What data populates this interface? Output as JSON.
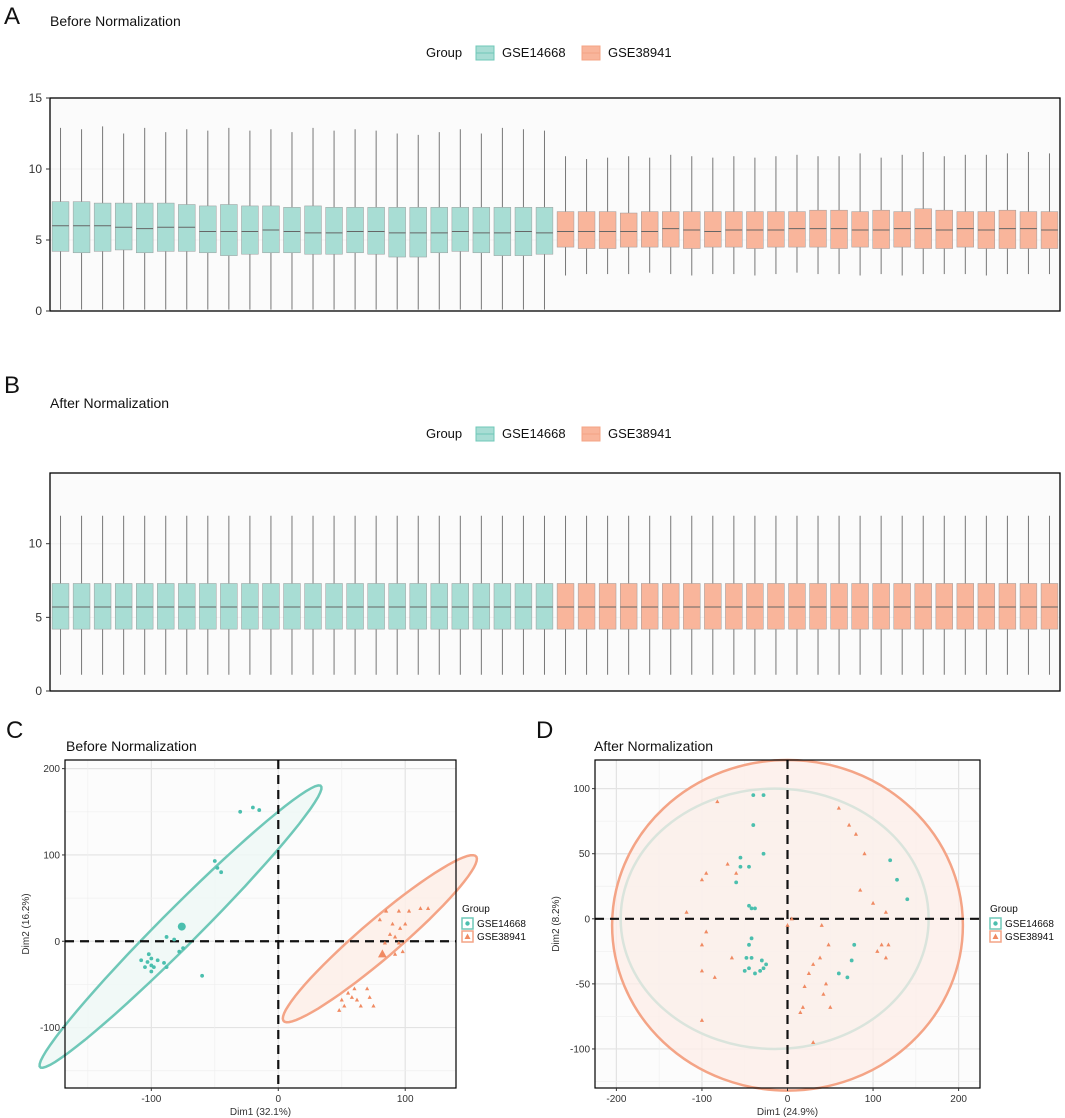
{
  "colors": {
    "gse14668_fill": "#a8ddd4",
    "gse14668_line": "#6fc8b8",
    "gse14668_point": "#4bbfae",
    "gse38941_fill": "#f9b59b",
    "gse38941_line": "#f4a486",
    "gse38941_point": "#f08a62",
    "ellipse1_fill": "#eef8f6",
    "ellipse2_fill": "#fdeee8"
  },
  "legend": {
    "title": "Group",
    "entries": [
      "GSE14668",
      "GSE38941"
    ]
  },
  "panels": {
    "a": {
      "letter": "A",
      "title": "Before Normalization"
    },
    "b": {
      "letter": "B",
      "title": "After Normalization"
    },
    "c": {
      "letter": "C",
      "title": "Before Normalization"
    },
    "d": {
      "letter": "D",
      "title": "After Normalization"
    }
  },
  "chart_data": [
    {
      "id": "A",
      "type": "boxplot",
      "title": "Before Normalization",
      "ylim": [
        0,
        15
      ],
      "yticks": [
        0,
        5,
        10,
        15
      ],
      "groups": [
        {
          "name": "GSE14668",
          "color_key": "gse14668",
          "boxes": [
            [
              0.1,
              4.2,
              6.0,
              7.7,
              12.9
            ],
            [
              0.1,
              4.1,
              6.0,
              7.7,
              12.8
            ],
            [
              0.1,
              4.2,
              6.0,
              7.6,
              13.0
            ],
            [
              0.1,
              4.3,
              5.9,
              7.6,
              12.5
            ],
            [
              0.1,
              4.1,
              5.8,
              7.6,
              12.9
            ],
            [
              0.1,
              4.2,
              5.9,
              7.6,
              12.6
            ],
            [
              0.1,
              4.2,
              5.9,
              7.5,
              12.8
            ],
            [
              0.1,
              4.1,
              5.6,
              7.4,
              12.7
            ],
            [
              0.1,
              3.9,
              5.6,
              7.5,
              12.9
            ],
            [
              0.1,
              4.0,
              5.6,
              7.4,
              12.7
            ],
            [
              0.1,
              4.1,
              5.7,
              7.4,
              12.8
            ],
            [
              0.1,
              4.1,
              5.6,
              7.3,
              12.6
            ],
            [
              0.1,
              4.0,
              5.5,
              7.4,
              12.9
            ],
            [
              0.1,
              4.0,
              5.5,
              7.3,
              12.7
            ],
            [
              0.1,
              4.1,
              5.6,
              7.3,
              12.8
            ],
            [
              0.1,
              4.0,
              5.6,
              7.3,
              12.7
            ],
            [
              0.1,
              3.8,
              5.5,
              7.3,
              12.5
            ],
            [
              0.1,
              3.8,
              5.5,
              7.3,
              12.4
            ],
            [
              0.1,
              4.1,
              5.5,
              7.3,
              12.6
            ],
            [
              0.1,
              4.2,
              5.6,
              7.3,
              12.8
            ],
            [
              0.1,
              4.1,
              5.5,
              7.3,
              12.5
            ],
            [
              0.1,
              3.9,
              5.5,
              7.3,
              12.9
            ],
            [
              0.1,
              3.9,
              5.6,
              7.3,
              12.8
            ],
            [
              0.1,
              4.0,
              5.5,
              7.3,
              12.7
            ]
          ]
        },
        {
          "name": "GSE38941",
          "color_key": "gse38941",
          "boxes": [
            [
              2.5,
              4.5,
              5.6,
              7.0,
              10.9
            ],
            [
              2.6,
              4.4,
              5.6,
              7.0,
              10.7
            ],
            [
              2.6,
              4.4,
              5.6,
              7.0,
              10.8
            ],
            [
              2.6,
              4.5,
              5.6,
              6.9,
              10.9
            ],
            [
              2.7,
              4.5,
              5.6,
              7.0,
              10.8
            ],
            [
              2.6,
              4.5,
              5.8,
              7.0,
              11.0
            ],
            [
              2.5,
              4.4,
              5.7,
              7.0,
              10.9
            ],
            [
              2.6,
              4.5,
              5.6,
              7.0,
              10.8
            ],
            [
              2.6,
              4.5,
              5.7,
              7.0,
              10.9
            ],
            [
              2.5,
              4.4,
              5.7,
              7.0,
              10.8
            ],
            [
              2.6,
              4.5,
              5.7,
              7.0,
              10.9
            ],
            [
              2.7,
              4.5,
              5.8,
              7.0,
              11.0
            ],
            [
              2.6,
              4.5,
              5.8,
              7.1,
              10.9
            ],
            [
              2.6,
              4.4,
              5.8,
              7.1,
              10.9
            ],
            [
              2.5,
              4.5,
              5.7,
              7.0,
              11.1
            ],
            [
              2.6,
              4.4,
              5.7,
              7.1,
              10.8
            ],
            [
              2.5,
              4.5,
              5.8,
              7.0,
              11.0
            ],
            [
              2.6,
              4.4,
              5.8,
              7.2,
              11.2
            ],
            [
              2.6,
              4.4,
              5.7,
              7.1,
              10.9
            ],
            [
              2.6,
              4.5,
              5.8,
              7.0,
              11.0
            ],
            [
              2.5,
              4.4,
              5.7,
              7.0,
              11.0
            ],
            [
              2.6,
              4.4,
              5.8,
              7.1,
              11.1
            ],
            [
              2.6,
              4.4,
              5.8,
              7.0,
              11.2
            ],
            [
              2.6,
              4.4,
              5.7,
              7.0,
              11.1
            ]
          ]
        }
      ]
    },
    {
      "id": "B",
      "type": "boxplot",
      "title": "After Normalization",
      "ylim": [
        0,
        14.8
      ],
      "yticks": [
        0,
        5,
        10
      ],
      "groups": [
        {
          "name": "GSE14668",
          "color_key": "gse14668",
          "count": 24,
          "box": [
            1.1,
            4.2,
            5.7,
            7.3,
            11.9
          ]
        },
        {
          "name": "GSE38941",
          "color_key": "gse38941",
          "count": 24,
          "box": [
            1.1,
            4.2,
            5.7,
            7.3,
            11.9
          ]
        }
      ]
    },
    {
      "id": "C",
      "type": "scatter",
      "title": "Before Normalization",
      "xlabel": "Dim1 (32.1%)",
      "ylabel": "Dim2 (16.2%)",
      "xlim": [
        -168,
        140
      ],
      "ylim": [
        -170,
        210
      ],
      "xticks": [
        -100,
        0,
        100
      ],
      "yticks": [
        -100,
        0,
        100,
        200
      ],
      "series": [
        {
          "name": "GSE14668",
          "marker": "circle",
          "ellipse": {
            "cx": -77,
            "cy": 17,
            "rx": 197,
            "ry": 17,
            "angle_deg": 56
          },
          "centroid": [
            -76,
            17
          ],
          "points": [
            [
              -30,
              150
            ],
            [
              -20,
              155
            ],
            [
              -15,
              152
            ],
            [
              -50,
              93
            ],
            [
              -48,
              85
            ],
            [
              -45,
              80
            ],
            [
              -82,
              2
            ],
            [
              -88,
              5
            ],
            [
              -78,
              -12
            ],
            [
              -100,
              -20
            ],
            [
              -103,
              -24
            ],
            [
              -105,
              -30
            ],
            [
              -98,
              -30
            ],
            [
              -108,
              -22
            ],
            [
              -95,
              -22
            ],
            [
              -90,
              -25
            ],
            [
              -100,
              -35
            ],
            [
              -102,
              -15
            ],
            [
              -88,
              -30
            ],
            [
              -75,
              -8
            ],
            [
              -60,
              -40
            ],
            [
              -100,
              -28
            ]
          ]
        },
        {
          "name": "GSE38941",
          "marker": "triangle",
          "ellipse": {
            "cx": 80,
            "cy": 3,
            "rx": 122,
            "ry": 18,
            "angle_deg": 52
          },
          "centroid": [
            82,
            -15
          ],
          "points": [
            [
              85,
              35
            ],
            [
              95,
              35
            ],
            [
              103,
              35
            ],
            [
              112,
              38
            ],
            [
              118,
              38
            ],
            [
              80,
              25
            ],
            [
              90,
              20
            ],
            [
              100,
              20
            ],
            [
              96,
              15
            ],
            [
              88,
              8
            ],
            [
              92,
              5
            ],
            [
              95,
              -2
            ],
            [
              92,
              -15
            ],
            [
              98,
              -12
            ],
            [
              84,
              -2
            ],
            [
              60,
              -55
            ],
            [
              55,
              -60
            ],
            [
              58,
              -65
            ],
            [
              62,
              -68
            ],
            [
              50,
              -68
            ],
            [
              52,
              -75
            ],
            [
              65,
              -75
            ],
            [
              48,
              -80
            ],
            [
              72,
              -65
            ],
            [
              70,
              -55
            ],
            [
              75,
              -75
            ]
          ]
        }
      ]
    },
    {
      "id": "D",
      "type": "scatter",
      "title": "After Normalization",
      "xlabel": "Dim1 (24.9%)",
      "ylabel": "Dim2 (8.2%)",
      "xlim": [
        -225,
        225
      ],
      "ylim": [
        -130,
        122
      ],
      "xticks": [
        -200,
        -100,
        0,
        100,
        200
      ],
      "yticks": [
        -100,
        -50,
        0,
        50,
        100
      ],
      "series": [
        {
          "name": "GSE14668",
          "marker": "circle",
          "ellipse": {
            "cx": -15,
            "cy": 0,
            "rx": 180,
            "ry": 100,
            "angle_deg": 0
          },
          "centroid": [
            0,
            0
          ],
          "points": [
            [
              -40,
              95
            ],
            [
              -28,
              95
            ],
            [
              -40,
              72
            ],
            [
              -55,
              47
            ],
            [
              -55,
              40
            ],
            [
              -28,
              50
            ],
            [
              -45,
              40
            ],
            [
              -60,
              28
            ],
            [
              -45,
              10
            ],
            [
              -38,
              8
            ],
            [
              -42,
              8
            ],
            [
              -42,
              -15
            ],
            [
              -45,
              -20
            ],
            [
              -48,
              -30
            ],
            [
              -42,
              -30
            ],
            [
              -45,
              -38
            ],
            [
              -38,
              -42
            ],
            [
              -30,
              -32
            ],
            [
              -32,
              -40
            ],
            [
              -28,
              -38
            ],
            [
              -25,
              -35
            ],
            [
              -50,
              -40
            ],
            [
              120,
              45
            ],
            [
              128,
              30
            ],
            [
              140,
              15
            ],
            [
              78,
              -20
            ],
            [
              75,
              -32
            ],
            [
              70,
              -45
            ],
            [
              60,
              -42
            ]
          ]
        },
        {
          "name": "GSE38941",
          "marker": "triangle",
          "ellipse": {
            "cx": 0,
            "cy": -5,
            "rx": 205,
            "ry": 127,
            "angle_deg": 0
          },
          "centroid": [
            0,
            0
          ],
          "points": [
            [
              -82,
              90
            ],
            [
              -95,
              35
            ],
            [
              -100,
              30
            ],
            [
              -118,
              5
            ],
            [
              -95,
              -10
            ],
            [
              -100,
              -20
            ],
            [
              -85,
              -45
            ],
            [
              -100,
              -40
            ],
            [
              -100,
              -78
            ],
            [
              -65,
              -30
            ],
            [
              -70,
              42
            ],
            [
              -60,
              35
            ],
            [
              60,
              85
            ],
            [
              72,
              72
            ],
            [
              80,
              65
            ],
            [
              85,
              22
            ],
            [
              90,
              50
            ],
            [
              100,
              12
            ],
            [
              115,
              5
            ],
            [
              105,
              -25
            ],
            [
              110,
              -20
            ],
            [
              118,
              -20
            ],
            [
              115,
              -30
            ],
            [
              40,
              -5
            ],
            [
              48,
              -20
            ],
            [
              38,
              -30
            ],
            [
              30,
              -35
            ],
            [
              25,
              -42
            ],
            [
              20,
              -52
            ],
            [
              18,
              -68
            ],
            [
              15,
              -72
            ],
            [
              42,
              -58
            ],
            [
              45,
              -50
            ],
            [
              50,
              -68
            ],
            [
              30,
              -95
            ],
            [
              0,
              -5
            ],
            [
              5,
              0
            ]
          ]
        }
      ]
    }
  ]
}
